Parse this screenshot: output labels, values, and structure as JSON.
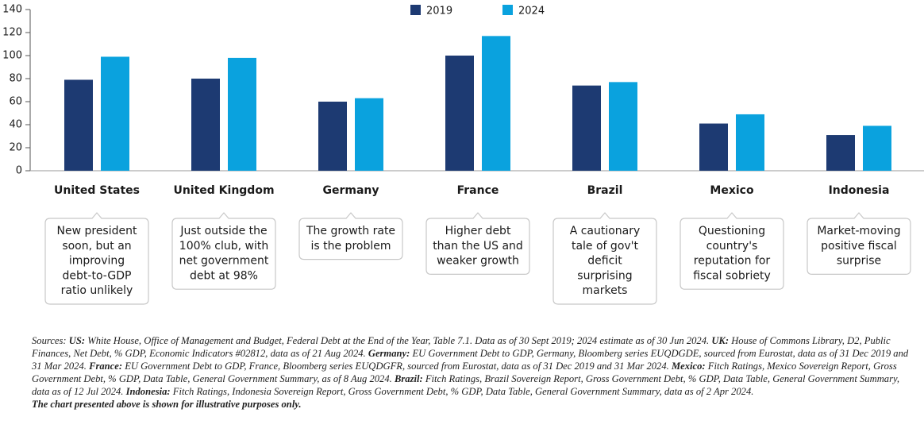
{
  "chart_data": {
    "type": "bar",
    "categories": [
      "United States",
      "United Kingdom",
      "Germany",
      "France",
      "Brazil",
      "Mexico",
      "Indonesia"
    ],
    "series": [
      {
        "name": "2019",
        "color": "#1d3a72",
        "values": [
          79,
          80,
          60,
          100,
          74,
          41,
          31
        ]
      },
      {
        "name": "2024",
        "color": "#0aa2de",
        "values": [
          99,
          98,
          63,
          117,
          77,
          49,
          39
        ]
      }
    ],
    "ylim": [
      0,
      140
    ],
    "yticks": [
      0,
      20,
      40,
      60,
      80,
      100,
      120,
      140
    ],
    "grid": false,
    "legend": "top",
    "annotations": [
      [
        "New president",
        "soon, but an",
        "improving",
        "debt-to-GDP",
        "ratio unlikely"
      ],
      [
        "Just outside the",
        "100% club, with",
        "net government",
        "debt at 98%"
      ],
      [
        "The growth rate",
        "is the problem"
      ],
      [
        "Higher debt",
        "than the US and",
        "weaker growth"
      ],
      [
        "A cautionary",
        "tale of gov't",
        "deficit",
        "surprising",
        "markets"
      ],
      [
        "Questioning",
        "country's",
        "reputation for",
        "fiscal sobriety"
      ],
      [
        "Market-moving",
        "positive fiscal",
        "surprise"
      ]
    ],
    "sources": [
      {
        "text": "Sources:",
        "bold": false
      },
      {
        "text": "US:",
        "bold": true
      },
      {
        "text": "White House, Office of Management and Budget, Federal Debt at the End of the Year, Table 7.1. Data as of 30 Sept 2019; 2024 estimate as of 30 Jun 2024.",
        "bold": false
      },
      {
        "text": "UK:",
        "bold": true
      },
      {
        "text": "House of Commons Library, D2, Public Finances, Net Debt, % GDP, Economic Indicators #02812, data as of 21 Aug 2024.",
        "bold": false
      },
      {
        "text": "Germany:",
        "bold": true
      },
      {
        "text": "EU Government Debt to GDP, Germany, Bloomberg series EUQDGDE, sourced from Eurostat, data as of 31 Dec 2019 and 31 Mar 2024.",
        "bold": false
      },
      {
        "text": "France:",
        "bold": true
      },
      {
        "text": "EU Government Debt to GDP, France, Bloomberg series EUQDGFR, sourced from Eurostat, data as of 31 Dec 2019 and 31 Mar 2024.",
        "bold": false
      },
      {
        "text": "Mexico:",
        "bold": true
      },
      {
        "text": "Fitch Ratings, Mexico Sovereign Report, Gross Government Debt, % GDP, Data Table, General Government Summary, as of 8 Aug 2024.",
        "bold": false
      },
      {
        "text": "Brazil:",
        "bold": true
      },
      {
        "text": "Fitch Ratings, Brazil Sovereign Report, Gross Government Debt, % GDP, Data Table, General Government Summary, data as of 12 Jul 2024.",
        "bold": false
      },
      {
        "text": "Indonesia:",
        "bold": true
      },
      {
        "text": "Fitch Ratings, Indonesia Sovereign Report, Gross Government Debt, % GDP, Data Table, General Government Summary, data as of 2 Apr 2024.",
        "bold": false
      }
    ],
    "disclaimer": "The chart presented above is shown for illustrative purposes only."
  }
}
